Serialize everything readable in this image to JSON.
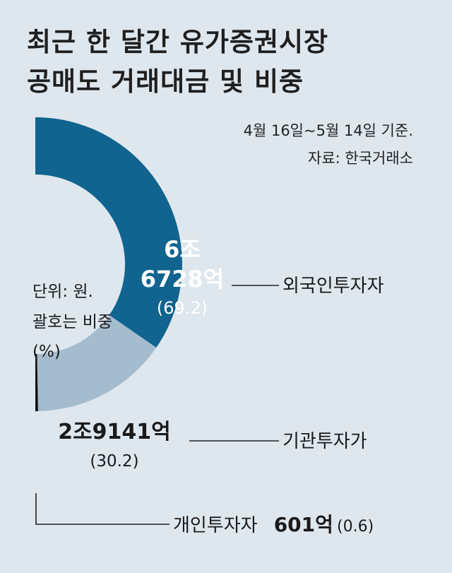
{
  "chart_data": {
    "type": "pie",
    "title_lines": [
      "최근 한 달간 유가증권시장",
      "공매도 거래대금 및 비중"
    ],
    "period": "4월 16일~5월 14일 기준.",
    "source": "자료: 한국거래소",
    "unit_lines": [
      "단위: 원.",
      "괄호는 비중",
      "(%)"
    ],
    "slices": [
      {
        "name": "외국인투자자",
        "amount": "6조 6728억",
        "amount_lines": [
          "6조",
          "6728억"
        ],
        "share": 69.2,
        "share_label": "(69.2)",
        "color": "#10648f"
      },
      {
        "name": "기관투자가",
        "amount": "2조9141억",
        "amount_lines": [
          "2조9141억"
        ],
        "share": 30.2,
        "share_label": "(30.2)",
        "color": "#a4bccd"
      },
      {
        "name": "개인투자자",
        "amount": "601억",
        "amount_lines": [
          "601억"
        ],
        "share": 0.6,
        "share_label": "(0.6)",
        "color": "#111111"
      }
    ]
  }
}
